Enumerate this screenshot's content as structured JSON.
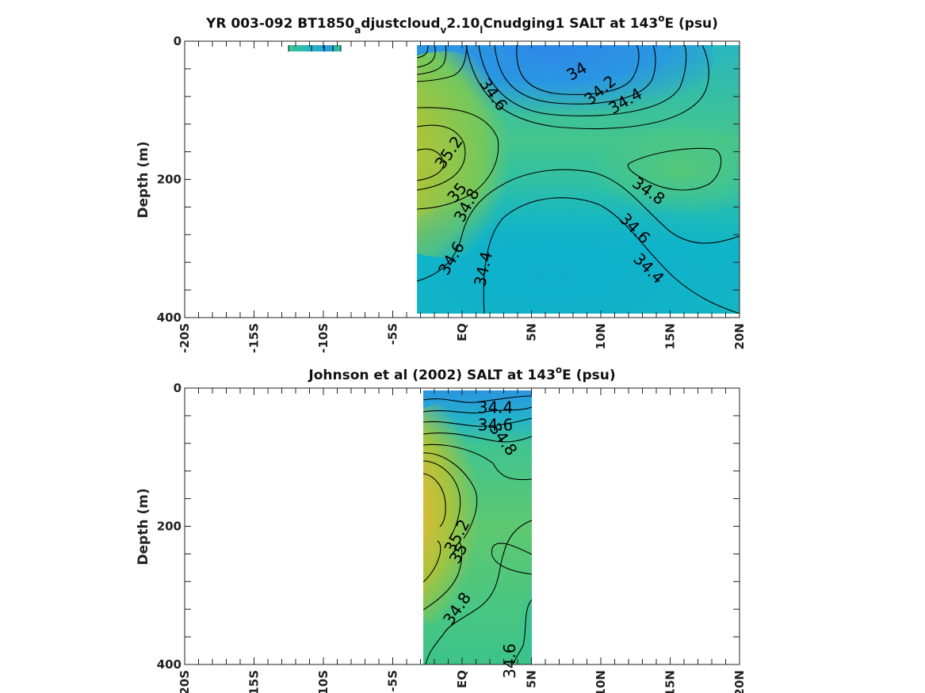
{
  "chart_data": [
    {
      "type": "contour",
      "title": {
        "main": "YR 003-092 BT1850",
        "sub1": "a",
        "mid1": "djustcloud",
        "sub2": "v",
        "mid2": "2.10",
        "sub3": "l",
        "mid3": "Cnudging1 SALT at 143",
        "sup": "o",
        "end": "E (psu)"
      },
      "ylabel": "Depth (m)",
      "xlabel": "",
      "x_ticks": [
        "-20S",
        "-15S",
        "-10S",
        "-5S",
        "EQ",
        "5N",
        "10N",
        "15N",
        "20N"
      ],
      "y_ticks": [
        "0",
        "200",
        "400"
      ],
      "xlim": [
        -20,
        20
      ],
      "ylim": [
        400,
        0
      ],
      "data_extent_lat": [
        -3.4,
        20
      ],
      "contour_levels": [
        34.0,
        34.2,
        34.4,
        34.6,
        34.8,
        35.0,
        35.2
      ],
      "contour_labels": [
        {
          "text": "34",
          "lat": 8.3,
          "depth": 45
        },
        {
          "text": "34.2",
          "lat": 10.0,
          "depth": 72
        },
        {
          "text": "34.4",
          "lat": 11.8,
          "depth": 88
        },
        {
          "text": "34.6",
          "lat": 2.2,
          "depth": 78
        },
        {
          "text": "35.2",
          "lat": -0.9,
          "depth": 162
        },
        {
          "text": "35",
          "lat": -0.3,
          "depth": 220
        },
        {
          "text": "34.8",
          "lat": 0.4,
          "depth": 238
        },
        {
          "text": "34.8",
          "lat": 13.4,
          "depth": 218
        },
        {
          "text": "34.6",
          "lat": 12.4,
          "depth": 272
        },
        {
          "text": "34.6",
          "lat": -0.7,
          "depth": 315
        },
        {
          "text": "34.4",
          "lat": 1.6,
          "depth": 330
        },
        {
          "text": "34.4",
          "lat": 13.4,
          "depth": 330
        }
      ]
    },
    {
      "type": "contour",
      "title": {
        "main": "Johnson et al (2002) SALT at 143",
        "sup": "o",
        "end": "E (psu)"
      },
      "ylabel": "Depth (m)",
      "xlabel": "",
      "x_ticks": [
        "-20S",
        "-15S",
        "-10S",
        "-5S",
        "EQ",
        "5N",
        "10N",
        "15N",
        "20N"
      ],
      "y_ticks": [
        "0",
        "200",
        "400"
      ],
      "xlim": [
        -20,
        20
      ],
      "ylim": [
        400,
        0
      ],
      "data_extent_lat": [
        -2.9,
        5
      ],
      "contour_levels": [
        34.4,
        34.6,
        34.8,
        35.0,
        35.2
      ],
      "contour_labels": [
        {
          "text": "34.4",
          "lat": 2.4,
          "depth": 30
        },
        {
          "text": "34.6",
          "lat": 2.4,
          "depth": 55
        },
        {
          "text": "34.8",
          "lat": 2.9,
          "depth": 75
        },
        {
          "text": "35.2",
          "lat": -0.3,
          "depth": 215
        },
        {
          "text": "35",
          "lat": -0.2,
          "depth": 240
        },
        {
          "text": "34.8",
          "lat": -0.3,
          "depth": 320
        },
        {
          "text": "34.6",
          "lat": 3.5,
          "depth": 395
        }
      ]
    }
  ],
  "colors": {
    "fresh": "#2c83e6",
    "mid_fresh": "#0aaecf",
    "mid": "#2cc0a8",
    "green": "#55c878",
    "olive": "#a8c43c",
    "salty": "#e4b840",
    "saltiest": "#f6b23c"
  }
}
